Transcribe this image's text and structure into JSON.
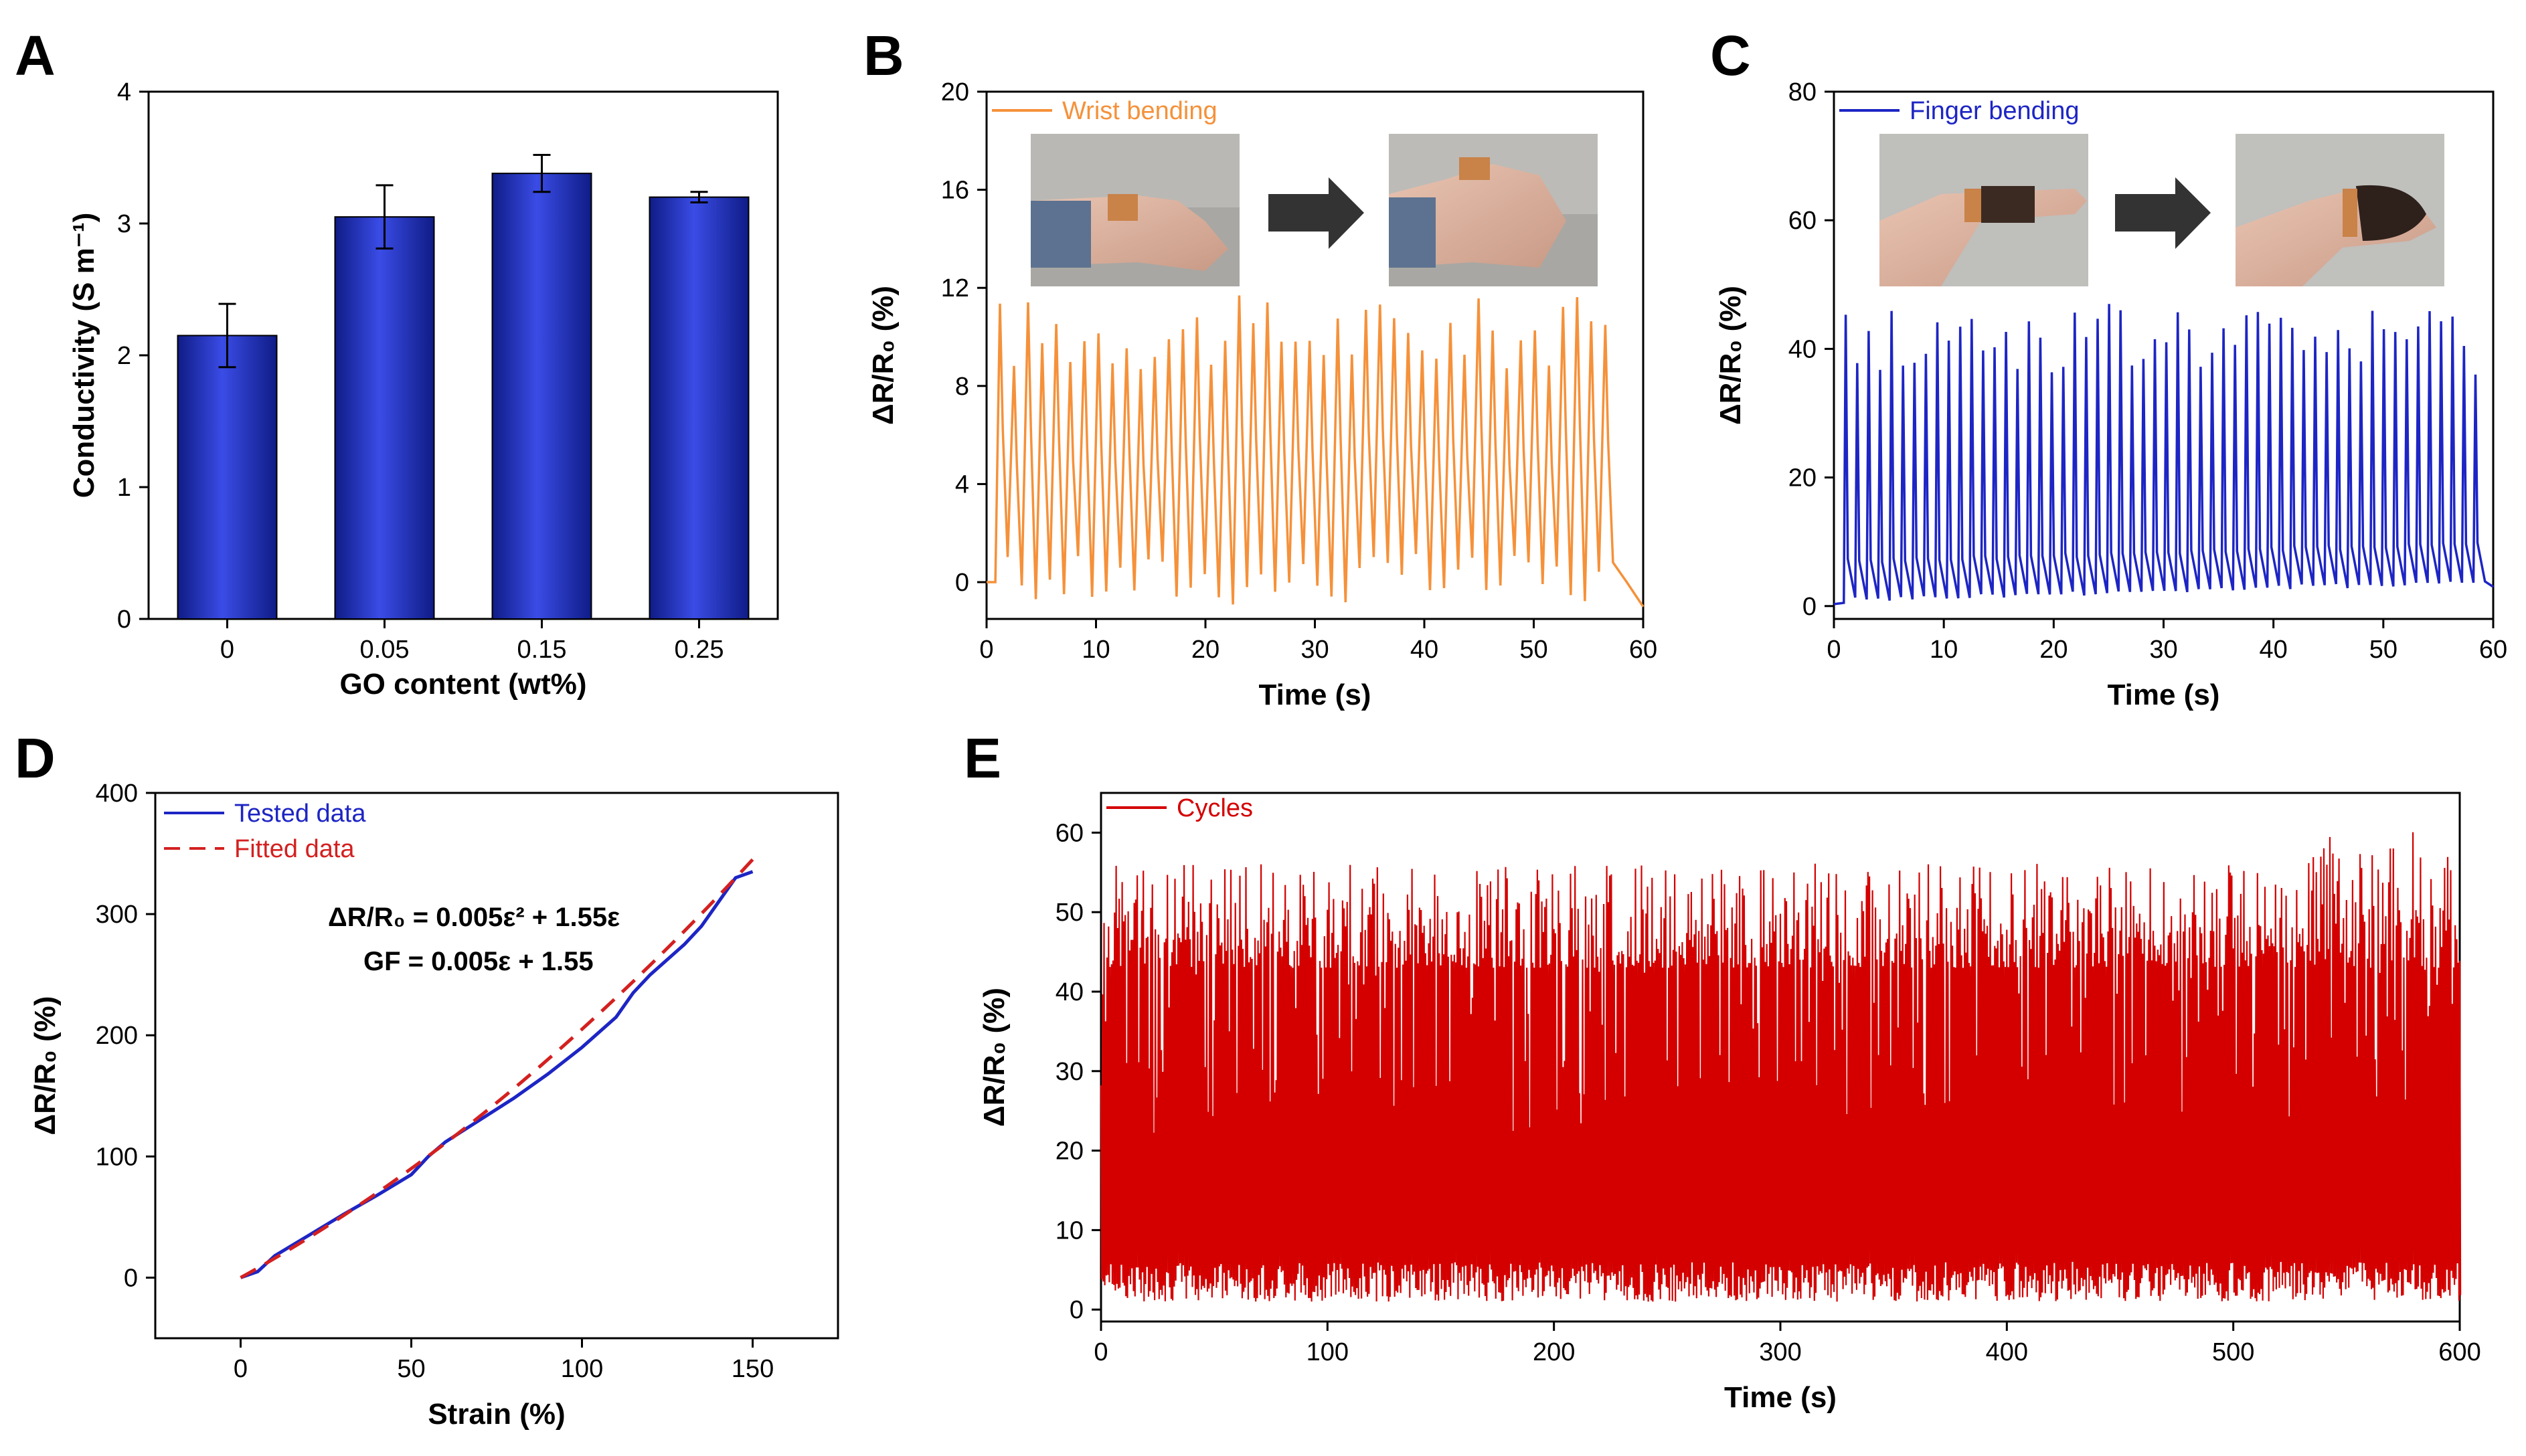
{
  "panels": {
    "A": {
      "label": "A",
      "chart_data": {
        "type": "bar",
        "categories": [
          "0",
          "0.05",
          "0.15",
          "0.25"
        ],
        "values": [
          2.15,
          3.05,
          3.38,
          3.2
        ],
        "errors": [
          0.24,
          0.24,
          0.14,
          0.04
        ],
        "xlabel": "GO content (wt%)",
        "ylabel": "Conductivity (S m⁻¹)",
        "ylim": [
          0,
          4
        ],
        "yticks": [
          0,
          1,
          2,
          3,
          4
        ],
        "bar_color": "#2a3bd4"
      }
    },
    "B": {
      "label": "B",
      "chart_data": {
        "type": "line",
        "series": [
          {
            "name": "Wrist bending",
            "color": "#f5913a"
          }
        ],
        "xlabel": "Time (s)",
        "ylabel": "ΔR/R₀ (%)",
        "xlim": [
          0,
          60
        ],
        "ylim": [
          -1.5,
          20
        ],
        "xticks": [
          0,
          10,
          20,
          30,
          40,
          50,
          60
        ],
        "yticks": [
          0,
          4,
          8,
          12,
          16,
          20
        ],
        "cycles": 44,
        "peak_range": [
          8.6,
          11.7
        ],
        "baseline": 0,
        "insets": [
          "wrist-straight-photo",
          "wrist-bent-photo"
        ]
      }
    },
    "C": {
      "label": "C",
      "chart_data": {
        "type": "line",
        "series": [
          {
            "name": "Finger bending",
            "color": "#1d25c4"
          }
        ],
        "xlabel": "Time (s)",
        "ylabel": "ΔR/R₀ (%)",
        "xlim": [
          0,
          60
        ],
        "ylim": [
          -2,
          80
        ],
        "xticks": [
          0,
          10,
          20,
          30,
          40,
          50,
          60
        ],
        "yticks": [
          0,
          20,
          40,
          60,
          80
        ],
        "cycles": 56,
        "peak_range": [
          36,
          47
        ],
        "baseline_range": [
          0.5,
          3
        ],
        "insets": [
          "finger-straight-photo",
          "finger-bent-photo"
        ]
      }
    },
    "D": {
      "label": "D",
      "chart_data": {
        "type": "line",
        "xlabel": "Strain (%)",
        "ylabel": "ΔR/R₀ (%)",
        "xlim": [
          -25,
          175
        ],
        "ylim": [
          -50,
          400
        ],
        "xticks": [
          0,
          50,
          100,
          150
        ],
        "yticks": [
          0,
          100,
          200,
          300,
          400
        ],
        "series": [
          {
            "name": "Tested data",
            "color": "#1d25c4",
            "style": "solid",
            "x": [
              0,
              5,
              10,
              20,
              30,
              40,
              50,
              55,
              60,
              70,
              80,
              90,
              100,
              110,
              115,
              120,
              130,
              135,
              140,
              145,
              150
            ],
            "y": [
              0,
              5,
              18,
              35,
              52,
              68,
              85,
              100,
              112,
              130,
              148,
              168,
              190,
              215,
              235,
              250,
              275,
              290,
              310,
              330,
              335
            ]
          },
          {
            "name": "Fitted data",
            "color": "#d42020",
            "style": "dashed",
            "fn": "0.005x^2+1.55x"
          }
        ],
        "equations": [
          "ΔR/R₀ = 0.005ε² + 1.55ε",
          "GF = 0.005ε + 1.55"
        ]
      }
    },
    "E": {
      "label": "E",
      "chart_data": {
        "type": "line",
        "series": [
          {
            "name": "Cycles",
            "color": "#d40000"
          }
        ],
        "xlabel": "Time (s)",
        "ylabel": "ΔR/R₀ (%)",
        "xlim": [
          0,
          600
        ],
        "ylim": [
          -1.5,
          65
        ],
        "xticks": [
          0,
          100,
          200,
          300,
          400,
          500,
          600
        ],
        "yticks": [
          0,
          10,
          20,
          30,
          40,
          50,
          60
        ],
        "peak_range": [
          43,
          60.5
        ],
        "valley_range": [
          1,
          6
        ]
      }
    }
  }
}
